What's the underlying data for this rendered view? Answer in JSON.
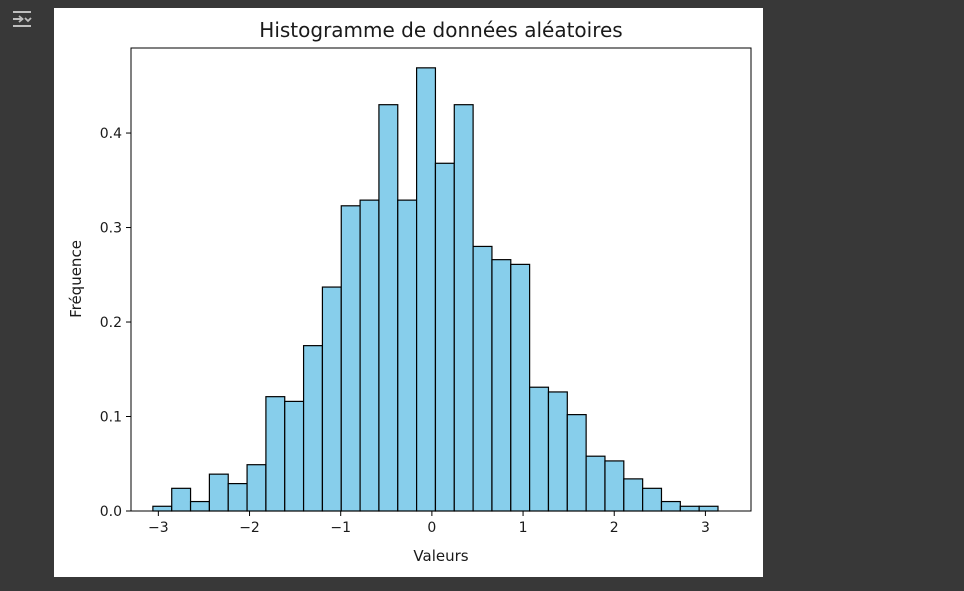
{
  "toolbar": {
    "output_toggle_icon": "collapse-output-icon"
  },
  "colors": {
    "background": "#383838",
    "figure_background": "#ffffff",
    "bar_fill": "#87ceeb",
    "bar_edge": "#000000",
    "icon": "#bfbfbf"
  },
  "chart_data": {
    "type": "bar",
    "title": "Histogramme de données aléatoires",
    "xlabel": "Valeurs",
    "ylabel": "Fréquence",
    "xlim": [
      -3.3,
      3.5
    ],
    "ylim": [
      0,
      0.49
    ],
    "xticks": [
      -3,
      -2,
      -1,
      0,
      1,
      2,
      3
    ],
    "xtick_labels": [
      "−3",
      "−2",
      "−1",
      "0",
      "1",
      "2",
      "3"
    ],
    "yticks": [
      0,
      0.1,
      0.2,
      0.3,
      0.4
    ],
    "ytick_labels": [
      "0.0",
      "0.1",
      "0.2",
      "0.3",
      "0.4"
    ],
    "bin_start": -3.06,
    "bin_width": 0.2066,
    "values": [
      0.005,
      0.024,
      0.01,
      0.039,
      0.029,
      0.049,
      0.121,
      0.116,
      0.175,
      0.237,
      0.323,
      0.329,
      0.43,
      0.329,
      0.469,
      0.368,
      0.43,
      0.28,
      0.266,
      0.261,
      0.131,
      0.126,
      0.102,
      0.058,
      0.053,
      0.034,
      0.024,
      0.01,
      0.005,
      0.005
    ],
    "grid": false,
    "legend": false
  }
}
